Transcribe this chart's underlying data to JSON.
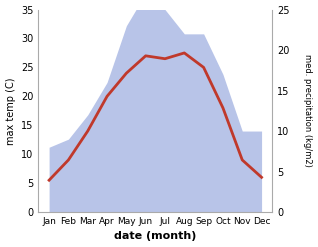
{
  "months": [
    "Jan",
    "Feb",
    "Mar",
    "Apr",
    "May",
    "Jun",
    "Jul",
    "Aug",
    "Sep",
    "Oct",
    "Nov",
    "Dec"
  ],
  "temperature": [
    5.5,
    9.0,
    14.0,
    20.0,
    24.0,
    27.0,
    26.5,
    27.5,
    25.0,
    18.0,
    9.0,
    6.0
  ],
  "precipitation": [
    8,
    9,
    12,
    16,
    23,
    27,
    25,
    22,
    22,
    17,
    10,
    10
  ],
  "temp_color": "#c0392b",
  "precip_color": "#b8c4e8",
  "temp_ylim": [
    0,
    35
  ],
  "precip_ylim": [
    0,
    25
  ],
  "temp_yticks": [
    0,
    5,
    10,
    15,
    20,
    25,
    30,
    35
  ],
  "precip_yticks": [
    0,
    5,
    10,
    15,
    20,
    25
  ],
  "xlabel": "date (month)",
  "ylabel_left": "max temp (C)",
  "ylabel_right": "med. precipitation (kg/m2)",
  "line_width": 2.0,
  "background_color": "#ffffff",
  "spine_color": "#aaaaaa",
  "label_fontsize": 7,
  "xlabel_fontsize": 8,
  "ylabel_right_fontsize": 6,
  "tick_labelsize": 7,
  "month_labelsize": 6.5
}
